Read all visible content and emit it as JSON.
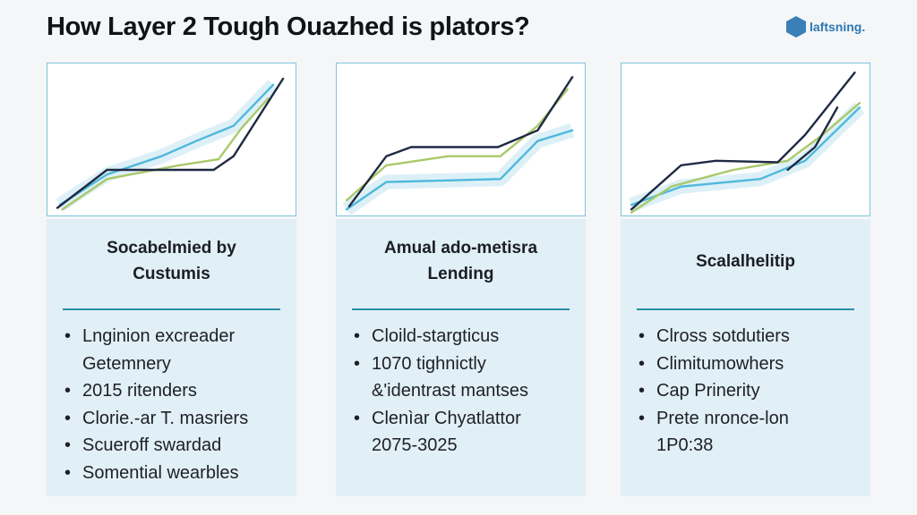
{
  "header": {
    "title": "How Layer 2 Tough Ouazhed is plators?",
    "logo_text": "laftsning."
  },
  "colors": {
    "navy": "#1f2a44",
    "blue": "#4fb8dc",
    "green": "#a9c96a",
    "panel_bg": "#e1eff6",
    "rule": "#2b8ea8"
  },
  "panels": [
    {
      "title_lines": [
        "Socabelmied by",
        "Custumis"
      ],
      "items": [
        {
          "text": "Lnginion excreader",
          "bullet": true
        },
        {
          "text": "Getemnery",
          "bullet": false
        },
        {
          "text": "2015 ritenders",
          "bullet": true
        },
        {
          "text": "Clorie.-ar T. masriers",
          "bullet": true
        },
        {
          "text": "Scueroff swardad",
          "bullet": true
        },
        {
          "text": "Somential wearbles",
          "bullet": true
        }
      ]
    },
    {
      "title_lines": [
        "Amual ado-metisra",
        "Lending"
      ],
      "items": [
        {
          "text": "Cloild-stargticus",
          "bullet": true
        },
        {
          "text": "1070 tighnictly",
          "bullet": true
        },
        {
          "text": "&'identrast mantses",
          "bullet": false
        },
        {
          "text": "Clenìar Chyatlattor",
          "bullet": true
        },
        {
          "text": "2075-3025",
          "bullet": false
        }
      ]
    },
    {
      "title_lines": [
        "Scalalhelitip"
      ],
      "items": [
        {
          "text": "Clross sotdutiers",
          "bullet": true
        },
        {
          "text": "Climitumowhers",
          "bullet": true
        },
        {
          "text": "Cap Prinerity",
          "bullet": true
        },
        {
          "text": "Prete nronce-lon",
          "bullet": true
        },
        {
          "text": "1P0:38",
          "bullet": false
        }
      ]
    }
  ],
  "chart_data": [
    {
      "type": "line",
      "xlim": [
        0,
        100
      ],
      "ylim": [
        0,
        100
      ],
      "grid": false,
      "series": [
        {
          "color": "#4fb8dc",
          "points": [
            [
              5,
              7
            ],
            [
              24,
              27
            ],
            [
              46,
              39
            ],
            [
              60,
              49
            ],
            [
              75,
              59
            ],
            [
              91,
              86
            ]
          ]
        },
        {
          "color": "#a9c96a",
          "points": [
            [
              6,
              4
            ],
            [
              24,
              24
            ],
            [
              53,
              33
            ],
            [
              69,
              37
            ],
            [
              78,
              57
            ],
            [
              89,
              77
            ]
          ]
        },
        {
          "color": "#1f2a44",
          "points": [
            [
              4,
              5
            ],
            [
              24,
              30
            ],
            [
              67,
              30
            ],
            [
              75,
              39
            ],
            [
              95,
              90
            ]
          ]
        }
      ]
    },
    {
      "type": "line",
      "xlim": [
        0,
        100
      ],
      "ylim": [
        0,
        100
      ],
      "grid": false,
      "series": [
        {
          "color": "#4fb8dc",
          "points": [
            [
              4,
              4
            ],
            [
              20,
              22
            ],
            [
              66,
              24
            ],
            [
              81,
              49
            ],
            [
              95,
              56
            ]
          ]
        },
        {
          "color": "#a9c96a",
          "points": [
            [
              4,
              10
            ],
            [
              20,
              33
            ],
            [
              45,
              39
            ],
            [
              66,
              39
            ],
            [
              81,
              59
            ],
            [
              93,
              83
            ]
          ]
        },
        {
          "color": "#1f2a44",
          "points": [
            [
              5,
              6
            ],
            [
              20,
              39
            ],
            [
              30,
              45
            ],
            [
              65,
              45
            ],
            [
              81,
              56
            ],
            [
              95,
              91
            ]
          ]
        }
      ]
    },
    {
      "type": "line",
      "xlim": [
        0,
        100
      ],
      "ylim": [
        0,
        100
      ],
      "grid": false,
      "series": [
        {
          "color": "#4fb8dc",
          "points": [
            [
              4,
              7
            ],
            [
              24,
              19
            ],
            [
              56,
              24
            ],
            [
              74,
              36
            ],
            [
              96,
              71
            ]
          ]
        },
        {
          "color": "#a9c96a",
          "points": [
            [
              4,
              2
            ],
            [
              20,
              19
            ],
            [
              45,
              30
            ],
            [
              67,
              36
            ],
            [
              81,
              53
            ],
            [
              96,
              74
            ]
          ]
        },
        {
          "color": "#1f2a44",
          "points": [
            [
              4,
              4
            ],
            [
              24,
              33
            ],
            [
              38,
              36
            ],
            [
              63,
              35
            ],
            [
              74,
              53
            ],
            [
              94,
              94
            ]
          ]
        },
        {
          "color": "#1f2a44",
          "points": [
            [
              67,
              30
            ],
            [
              78,
              45
            ],
            [
              87,
              71
            ]
          ]
        }
      ]
    }
  ]
}
